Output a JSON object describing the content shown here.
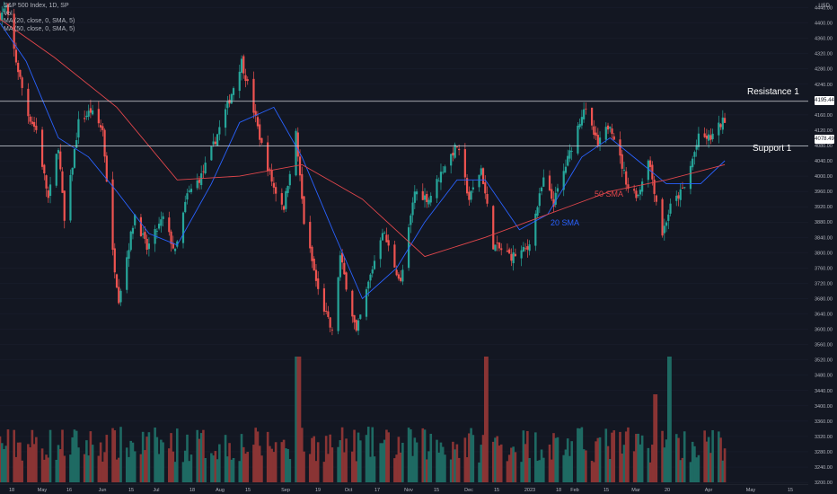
{
  "legend": {
    "title": "S&P 500 Index, 1D, SP",
    "line1": "Vol",
    "line2": "MA (20, close, 0, SMA, 5)",
    "line3": "MA (50, close, 0, SMA, 5)"
  },
  "price_axis": {
    "unit": "USD",
    "ticks": [
      4440,
      4400,
      4360,
      4320,
      4280,
      4240,
      4200,
      4160,
      4120,
      4080,
      4040,
      4000,
      3960,
      3920,
      3880,
      3840,
      3800,
      3760,
      3720,
      3680,
      3640,
      3600,
      3560,
      3520,
      3480,
      3440,
      3400,
      3360,
      3320,
      3280,
      3240,
      3200,
      3160,
      3120
    ]
  },
  "time_axis": {
    "labels": [
      "18",
      "May",
      "16",
      "Jun",
      "15",
      "Jul",
      "18",
      "Aug",
      "15",
      "Sep",
      "19",
      "Oct",
      "17",
      "Nov",
      "15",
      "Dec",
      "15",
      "2023",
      "18",
      "Feb",
      "15",
      "Mar",
      "20",
      "Apr",
      "May",
      "15"
    ]
  },
  "levels": {
    "resistance": {
      "label": "Resistance 1",
      "price_tag": "4195.44",
      "value": 4195.44
    },
    "support": {
      "label": "Support 1",
      "price_tag": "4078.49",
      "value": 4078.49
    }
  },
  "sma_labels": {
    "sma20": "20 SMA",
    "sma50": "50 SMA"
  },
  "colors": {
    "background": "#131722",
    "up": "#26a69a",
    "down": "#ef5350",
    "up_volume": "#1e6a63",
    "down_volume": "#8a3434",
    "sma20": "#2962ff",
    "sma50": "#e0464b",
    "level_line": "#d1d4dc",
    "axis_text": "#b2b5be"
  },
  "chart_data": {
    "type": "candlestick",
    "title": "S&P 500 Index, 1D, SP",
    "ylabel": "USD",
    "ylim": [
      3100,
      4460
    ],
    "x_range": [
      "2022-04-18",
      "2023-05-20"
    ],
    "price_path": [
      [
        "2022-04-18",
        4420
      ],
      [
        "2022-04-21",
        4440
      ],
      [
        "2022-04-26",
        4300
      ],
      [
        "2022-05-02",
        4160
      ],
      [
        "2022-05-06",
        4120
      ],
      [
        "2022-05-12",
        3940
      ],
      [
        "2022-05-17",
        4080
      ],
      [
        "2022-05-20",
        3880
      ],
      [
        "2022-05-27",
        4140
      ],
      [
        "2022-06-02",
        4170
      ],
      [
        "2022-06-08",
        4120
      ],
      [
        "2022-06-13",
        3800
      ],
      [
        "2022-06-16",
        3680
      ],
      [
        "2022-06-24",
        3900
      ],
      [
        "2022-06-30",
        3810
      ],
      [
        "2022-07-08",
        3890
      ],
      [
        "2022-07-14",
        3800
      ],
      [
        "2022-07-20",
        3950
      ],
      [
        "2022-07-27",
        4000
      ],
      [
        "2022-08-02",
        4080
      ],
      [
        "2022-08-10",
        4200
      ],
      [
        "2022-08-16",
        4300
      ],
      [
        "2022-08-19",
        4240
      ],
      [
        "2022-08-26",
        4080
      ],
      [
        "2022-09-01",
        3970
      ],
      [
        "2022-09-06",
        3920
      ],
      [
        "2022-09-12",
        4110
      ],
      [
        "2022-09-16",
        3880
      ],
      [
        "2022-09-23",
        3700
      ],
      [
        "2022-09-30",
        3590
      ],
      [
        "2022-10-04",
        3790
      ],
      [
        "2022-10-12",
        3590
      ],
      [
        "2022-10-18",
        3720
      ],
      [
        "2022-10-25",
        3860
      ],
      [
        "2022-11-03",
        3720
      ],
      [
        "2022-11-10",
        3960
      ],
      [
        "2022-11-17",
        3940
      ],
      [
        "2022-11-25",
        4030
      ],
      [
        "2022-12-01",
        4080
      ],
      [
        "2022-12-07",
        3940
      ],
      [
        "2022-12-13",
        4020
      ],
      [
        "2022-12-19",
        3820
      ],
      [
        "2022-12-28",
        3790
      ],
      [
        "2023-01-05",
        3810
      ],
      [
        "2023-01-13",
        3990
      ],
      [
        "2023-01-18",
        3930
      ],
      [
        "2023-01-26",
        4060
      ],
      [
        "2023-02-02",
        4180
      ],
      [
        "2023-02-09",
        4080
      ],
      [
        "2023-02-15",
        4140
      ],
      [
        "2023-02-24",
        3970
      ],
      [
        "2023-03-01",
        3950
      ],
      [
        "2023-03-06",
        4050
      ],
      [
        "2023-03-13",
        3850
      ],
      [
        "2023-03-17",
        3920
      ],
      [
        "2023-03-24",
        3970
      ],
      [
        "2023-03-31",
        4100
      ],
      [
        "2023-04-06",
        4100
      ],
      [
        "2023-04-13",
        4150
      ]
    ],
    "sma20": [
      [
        "2022-04-18",
        4400
      ],
      [
        "2022-05-01",
        4300
      ],
      [
        "2022-05-17",
        4100
      ],
      [
        "2022-06-01",
        4050
      ],
      [
        "2022-06-15",
        3960
      ],
      [
        "2022-07-01",
        3850
      ],
      [
        "2022-07-15",
        3820
      ],
      [
        "2022-08-01",
        3980
      ],
      [
        "2022-08-15",
        4140
      ],
      [
        "2022-09-01",
        4180
      ],
      [
        "2022-09-15",
        4050
      ],
      [
        "2022-10-01",
        3850
      ],
      [
        "2022-10-15",
        3680
      ],
      [
        "2022-11-01",
        3760
      ],
      [
        "2022-11-15",
        3880
      ],
      [
        "2022-12-01",
        3990
      ],
      [
        "2022-12-15",
        3990
      ],
      [
        "2023-01-01",
        3860
      ],
      [
        "2023-01-15",
        3900
      ],
      [
        "2023-02-01",
        4050
      ],
      [
        "2023-02-15",
        4100
      ],
      [
        "2023-03-01",
        4040
      ],
      [
        "2023-03-15",
        3980
      ],
      [
        "2023-04-01",
        3980
      ],
      [
        "2023-04-13",
        4040
      ]
    ],
    "sma50": [
      [
        "2022-04-18",
        4410
      ],
      [
        "2022-05-15",
        4310
      ],
      [
        "2022-06-15",
        4180
      ],
      [
        "2022-07-15",
        3990
      ],
      [
        "2022-08-15",
        4000
      ],
      [
        "2022-09-15",
        4030
      ],
      [
        "2022-10-15",
        3940
      ],
      [
        "2022-11-15",
        3790
      ],
      [
        "2022-12-15",
        3840
      ],
      [
        "2023-01-15",
        3900
      ],
      [
        "2023-02-15",
        3960
      ],
      [
        "2023-03-15",
        3990
      ],
      [
        "2023-04-13",
        4030
      ]
    ],
    "volume_spikes": [
      [
        "2022-09-13",
        1.0
      ],
      [
        "2022-12-16",
        1.0
      ],
      [
        "2023-03-17",
        1.0
      ],
      [
        "2023-03-10",
        0.7
      ]
    ]
  }
}
